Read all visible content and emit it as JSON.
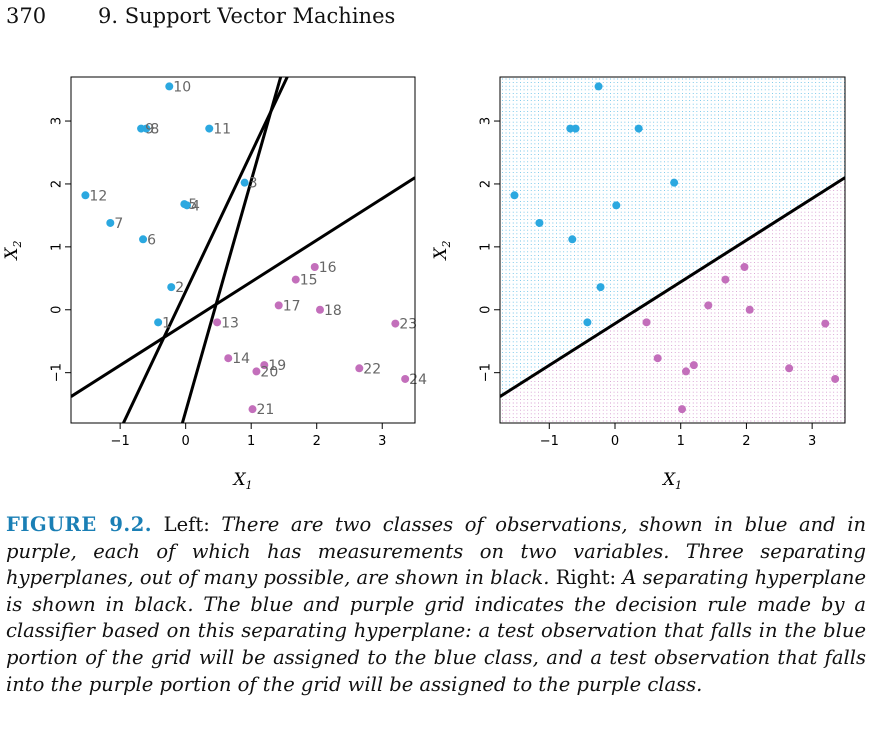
{
  "header": {
    "page_number": "370",
    "chapter_title": "9.  Support Vector Machines"
  },
  "colors": {
    "blue": "#2ba8e0",
    "purple": "#c36fbb",
    "axis": "#000000",
    "point_label": "#666666"
  },
  "chart_data": [
    {
      "type": "scatter",
      "title": "",
      "xlabel": "X1",
      "ylabel": "X2",
      "xlim": [
        -1.75,
        3.5
      ],
      "ylim": [
        -1.8,
        3.7
      ],
      "xticks": [
        -1,
        0,
        1,
        2,
        3
      ],
      "yticks": [
        -1,
        0,
        1,
        2,
        3
      ],
      "xtick_labels": [
        "−1",
        "0",
        "1",
        "2",
        "3"
      ],
      "ytick_labels": [
        "−1",
        "0",
        "1",
        "2",
        "3"
      ],
      "series": [
        {
          "color": "#2ba8e0",
          "points": [
            {
              "x": -0.42,
              "y": -0.2,
              "label": "1"
            },
            {
              "x": -0.22,
              "y": 0.36,
              "label": "2"
            },
            {
              "x": 0.9,
              "y": 2.02,
              "label": "3"
            },
            {
              "x": 0.02,
              "y": 1.66,
              "label": "4"
            },
            {
              "x": -0.02,
              "y": 1.68,
              "label": "5"
            },
            {
              "x": -0.65,
              "y": 1.12,
              "label": "6"
            },
            {
              "x": -1.15,
              "y": 1.38,
              "label": "7"
            },
            {
              "x": -0.6,
              "y": 2.88,
              "label": "8"
            },
            {
              "x": -0.68,
              "y": 2.88,
              "label": "9"
            },
            {
              "x": -0.25,
              "y": 3.55,
              "label": "10"
            },
            {
              "x": 0.36,
              "y": 2.88,
              "label": "11"
            },
            {
              "x": -1.53,
              "y": 1.82,
              "label": "12"
            }
          ]
        },
        {
          "color": "#c36fbb",
          "points": [
            {
              "x": 0.48,
              "y": -0.2,
              "label": "13"
            },
            {
              "x": 0.65,
              "y": -0.77,
              "label": "14"
            },
            {
              "x": 1.68,
              "y": 0.48,
              "label": "15"
            },
            {
              "x": 1.97,
              "y": 0.68,
              "label": "16"
            },
            {
              "x": 1.42,
              "y": 0.07,
              "label": "17"
            },
            {
              "x": 2.05,
              "y": 0.0,
              "label": "18"
            },
            {
              "x": 1.2,
              "y": -0.88,
              "label": "19"
            },
            {
              "x": 1.08,
              "y": -0.98,
              "label": "20"
            },
            {
              "x": 1.02,
              "y": -1.58,
              "label": "21"
            },
            {
              "x": 2.65,
              "y": -0.93,
              "label": "22"
            },
            {
              "x": 3.2,
              "y": -0.22,
              "label": "23"
            },
            {
              "x": 3.35,
              "y": -1.1,
              "label": "24"
            }
          ]
        }
      ],
      "lines": [
        {
          "points": [
            [
              -1.75,
              -1.38
            ],
            [
              3.5,
              2.1
            ]
          ]
        },
        {
          "points": [
            [
              -0.95,
              -1.8
            ],
            [
              1.55,
              3.7
            ]
          ]
        },
        {
          "points": [
            [
              -0.05,
              -1.8
            ],
            [
              1.45,
              3.7
            ]
          ]
        }
      ]
    },
    {
      "type": "scatter",
      "title": "",
      "xlabel": "X1",
      "ylabel": "X2",
      "xlim": [
        -1.75,
        3.5
      ],
      "ylim": [
        -1.8,
        3.7
      ],
      "xticks": [
        -1,
        0,
        1,
        2,
        3
      ],
      "yticks": [
        -1,
        0,
        1,
        2,
        3
      ],
      "xtick_labels": [
        "−1",
        "0",
        "1",
        "2",
        "3"
      ],
      "ytick_labels": [
        "−1",
        "0",
        "1",
        "2",
        "3"
      ],
      "grid_background": "decision regions (blue above line, purple below)",
      "series": [
        {
          "color": "#2ba8e0",
          "points": [
            {
              "x": -0.42,
              "y": -0.2
            },
            {
              "x": -0.22,
              "y": 0.36
            },
            {
              "x": 0.9,
              "y": 2.02
            },
            {
              "x": 0.02,
              "y": 1.66
            },
            {
              "x": -0.65,
              "y": 1.12
            },
            {
              "x": -1.15,
              "y": 1.38
            },
            {
              "x": -0.6,
              "y": 2.88
            },
            {
              "x": -0.68,
              "y": 2.88
            },
            {
              "x": -0.25,
              "y": 3.55
            },
            {
              "x": 0.36,
              "y": 2.88
            },
            {
              "x": -1.53,
              "y": 1.82
            }
          ]
        },
        {
          "color": "#c36fbb",
          "points": [
            {
              "x": 0.48,
              "y": -0.2
            },
            {
              "x": 0.65,
              "y": -0.77
            },
            {
              "x": 1.68,
              "y": 0.48
            },
            {
              "x": 1.97,
              "y": 0.68
            },
            {
              "x": 1.42,
              "y": 0.07
            },
            {
              "x": 2.05,
              "y": 0.0
            },
            {
              "x": 1.2,
              "y": -0.88
            },
            {
              "x": 1.08,
              "y": -0.98
            },
            {
              "x": 1.02,
              "y": -1.58
            },
            {
              "x": 2.65,
              "y": -0.93
            },
            {
              "x": 3.2,
              "y": -0.22
            },
            {
              "x": 3.35,
              "y": -1.1
            }
          ]
        }
      ],
      "lines": [
        {
          "points": [
            [
              -1.75,
              -1.38
            ],
            [
              3.5,
              2.1
            ]
          ]
        }
      ]
    }
  ],
  "caption": {
    "figure_label": "FIGURE 9.2.",
    "left_label": "Left:",
    "left_text": "There are two classes of observations, shown in blue and in purple, each of which has measurements on two variables. Three separating hyperplanes, out of many possible, are shown in black.",
    "right_label": "Right:",
    "right_text": "A separating hyperplane is shown in black. The blue and purple grid indicates the decision rule made by a classifier based on this separating hyperplane: a test observation that falls in the blue portion of the grid will be assigned to the blue class, and a test observation that falls into the purple portion of the grid will be assigned to the purple class."
  }
}
